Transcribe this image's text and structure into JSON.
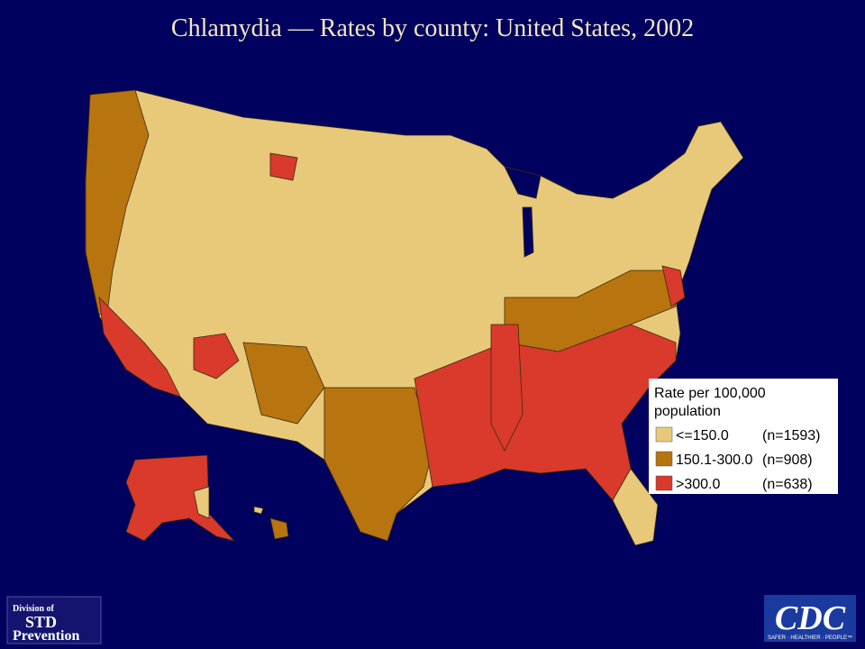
{
  "header": {
    "title": "Chlamydia — Rates by county: United States, 2002"
  },
  "legend": {
    "title_line1": "Rate per 100,000",
    "title_line2": "population",
    "items": [
      {
        "label": "<=150.0",
        "count": "(n=1593)",
        "color": "#e8c97a"
      },
      {
        "label": "150.1-300.0",
        "count": "(n=908)",
        "color": "#b8740e"
      },
      {
        "label": ">300.0",
        "count": "(n=638)",
        "color": "#d93a2b"
      }
    ]
  },
  "logos": {
    "division_line1": "Division of",
    "division_line2": "STD",
    "division_line3": "Prevention",
    "cdc": "CDC",
    "cdc_tagline": "SAFER · HEALTHIER · PEOPLE™"
  }
}
